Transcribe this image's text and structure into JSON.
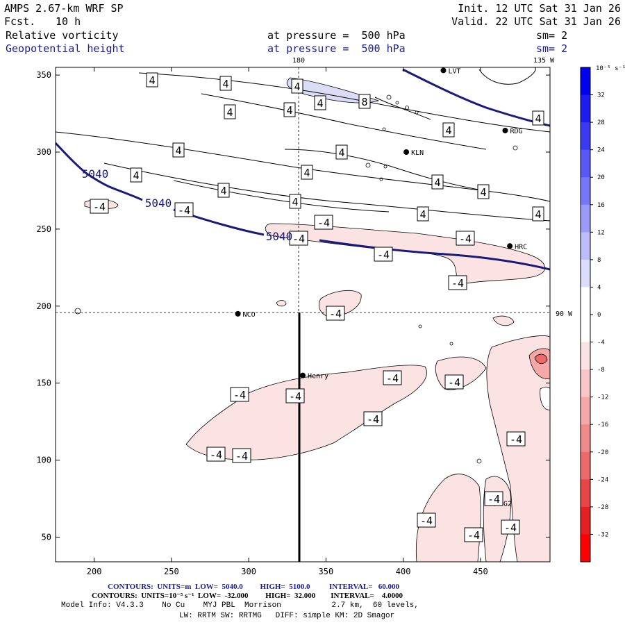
{
  "header": {
    "model": "AMPS 2.67-km WRF SP",
    "fcst_label": "Fcst.",
    "fcst_value": "10 h",
    "init": "Init. 12 UTC Sat 31 Jan 26",
    "valid": "Valid. 22 UTC Sat 31 Jan 26",
    "field1_name": "Relative vorticity",
    "field1_level": "at pressure =  500 hPa",
    "field1_sm": "sm= 2",
    "field2_name": "Geopotential height",
    "field2_level": "at pressure =  500 hPa",
    "field2_sm": "sm= 2"
  },
  "map": {
    "x_ticks": [
      200,
      250,
      300,
      350,
      400,
      450
    ],
    "y_ticks": [
      50,
      100,
      150,
      200,
      250,
      300,
      350
    ],
    "x_range": [
      175,
      495
    ],
    "y_range": [
      34,
      355
    ],
    "lon_180_label": "180",
    "lon_135w_label": "135 W",
    "lon_90w_label": "90 W",
    "stations": [
      {
        "name": "LVT",
        "x": 426,
        "y": 353
      },
      {
        "name": "RDG",
        "x": 466,
        "y": 314
      },
      {
        "name": "KLN",
        "x": 402,
        "y": 300
      },
      {
        "name": "HRC",
        "x": 469,
        "y": 239
      },
      {
        "name": "NCO",
        "x": 293,
        "y": 195
      },
      {
        "name": "Henry",
        "x": 335,
        "y": 155
      },
      {
        "name": "BG2",
        "x": 459,
        "y": 72
      }
    ],
    "height_contour_label": "5040",
    "pos_label": "4",
    "pos_label_8": "8",
    "neg_label": "-4",
    "colors": {
      "height_contour": "#1a1a7a",
      "neg_fill": "#fbe3e3",
      "neg_fill_strong": "#f4a8a8",
      "neg_fill_max": "#ec6a6a",
      "pos_fill": "#dcdcf6"
    }
  },
  "colorbar": {
    "units": "10⁻⁵ s⁻¹",
    "levels": [
      "32",
      "28",
      "24",
      "20",
      "16",
      "12",
      "8",
      "4",
      "0",
      "-4",
      "-8",
      "-12",
      "-16",
      "-20",
      "-24",
      "-28",
      "-32"
    ],
    "colors": [
      "#0000ee",
      "#1c1cf0",
      "#3a3af2",
      "#5858f4",
      "#7676f6",
      "#9a9af8",
      "#bcbcfa",
      "#dcdcfc",
      "#ffffff",
      "#ffffff",
      "#fbe3e3",
      "#f8c6c6",
      "#f4a8a8",
      "#f08a8a",
      "#ec6a6a",
      "#e84646",
      "#e42020",
      "#ff0000"
    ]
  },
  "footer": {
    "line1": "CONTOURS:  UNITS=m  LOW=  5040.0         HIGH=  5100.0          INTERVAL=   60.000",
    "line2": "CONTOURS:  UNITS=10⁻⁵ s⁻¹  LOW=  -32.000         HIGH=  32.000        INTERVAL=    4.0000",
    "line3": "Model Info: V4.3.3    No Cu    MYJ PBL  Morrison           2.7 km,  60 levels,",
    "line4": "LW: RRTM SW: RRTMG   DIFF: simple KM: 2D Smagor"
  }
}
